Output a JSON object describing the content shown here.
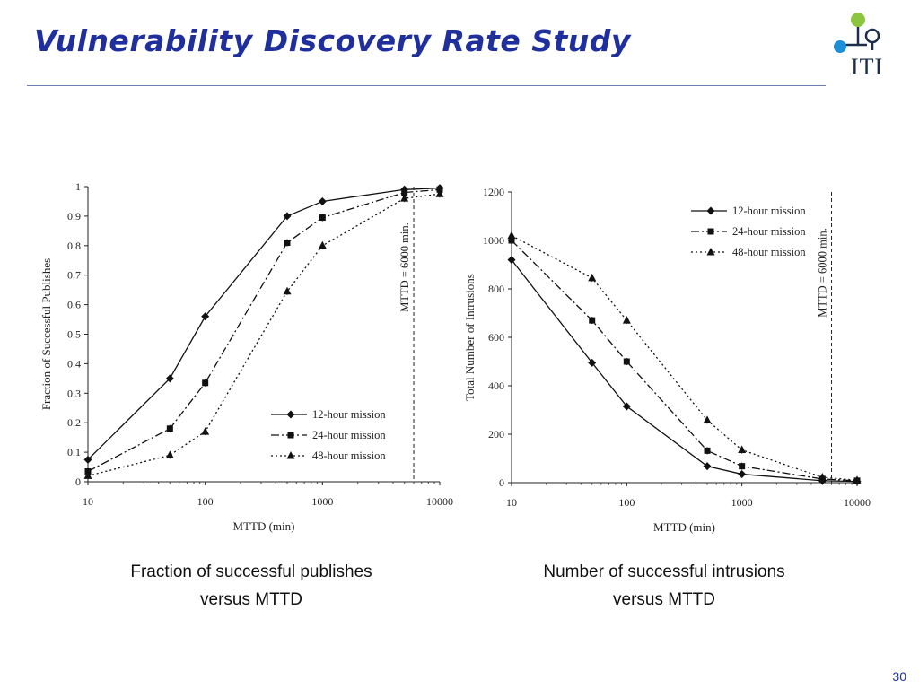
{
  "slide": {
    "title": "Vulnerability Discovery Rate Study",
    "logo_text": "ITI",
    "page_number": "30",
    "title_color": "#1f2f9e"
  },
  "captions": {
    "left": [
      "Fraction of successful publishes",
      "versus MTTD"
    ],
    "right": [
      "Number of successful intrusions",
      "versus MTTD"
    ]
  },
  "chart_data": [
    {
      "type": "line",
      "xscale": "log",
      "xlim": [
        10,
        10000
      ],
      "xticks": [
        "10",
        "100",
        "1000",
        "10000"
      ],
      "ylim": [
        0,
        1
      ],
      "yticks": [
        "0",
        "0.1",
        "0.2",
        "0.3",
        "0.4",
        "0.5",
        "0.6",
        "0.7",
        "0.8",
        "0.9",
        "1"
      ],
      "xlabel": "MTTD (min)",
      "ylabel": "Fraction of Successful Publishes",
      "vline": {
        "x": 6000,
        "label": "MTTD = 6000 min."
      },
      "legend_position": "lower-right",
      "grid": false,
      "series": [
        {
          "name": "12-hour mission",
          "marker": "diamond",
          "dash": "solid",
          "x": [
            10,
            50,
            100,
            500,
            1000,
            5000,
            10000
          ],
          "y": [
            0.075,
            0.35,
            0.56,
            0.9,
            0.95,
            0.99,
            0.995
          ]
        },
        {
          "name": "24-hour mission",
          "marker": "square",
          "dash": "dashdot",
          "x": [
            10,
            50,
            100,
            500,
            1000,
            5000,
            10000
          ],
          "y": [
            0.035,
            0.18,
            0.335,
            0.81,
            0.895,
            0.98,
            0.99
          ]
        },
        {
          "name": "48-hour mission",
          "marker": "triangle",
          "dash": "dotted",
          "x": [
            10,
            50,
            100,
            500,
            1000,
            5000,
            10000
          ],
          "y": [
            0.02,
            0.09,
            0.17,
            0.645,
            0.8,
            0.96,
            0.975
          ]
        }
      ]
    },
    {
      "type": "line",
      "xscale": "log",
      "xlim": [
        10,
        10000
      ],
      "xticks": [
        "10",
        "100",
        "1000",
        "10000"
      ],
      "ylim": [
        0,
        1200
      ],
      "yticks": [
        "0",
        "200",
        "400",
        "600",
        "800",
        "1000",
        "1200"
      ],
      "xlabel": "MTTD (min)",
      "ylabel": "Total Number of Intrusions",
      "vline": {
        "x": 6000,
        "label": "MTTD = 6000 min."
      },
      "legend_position": "top-right",
      "grid": false,
      "series": [
        {
          "name": "12-hour mission",
          "marker": "diamond",
          "dash": "solid",
          "x": [
            10,
            50,
            100,
            500,
            1000,
            5000,
            10000
          ],
          "y": [
            920,
            495,
            315,
            68,
            35,
            8,
            5
          ]
        },
        {
          "name": "24-hour mission",
          "marker": "square",
          "dash": "dashdot",
          "x": [
            10,
            50,
            100,
            500,
            1000,
            5000,
            10000
          ],
          "y": [
            1000,
            670,
            500,
            132,
            68,
            15,
            8
          ]
        },
        {
          "name": "48-hour mission",
          "marker": "triangle",
          "dash": "dotted",
          "x": [
            10,
            50,
            100,
            500,
            1000,
            5000,
            10000
          ],
          "y": [
            1020,
            845,
            670,
            258,
            135,
            22,
            10
          ]
        }
      ]
    }
  ]
}
